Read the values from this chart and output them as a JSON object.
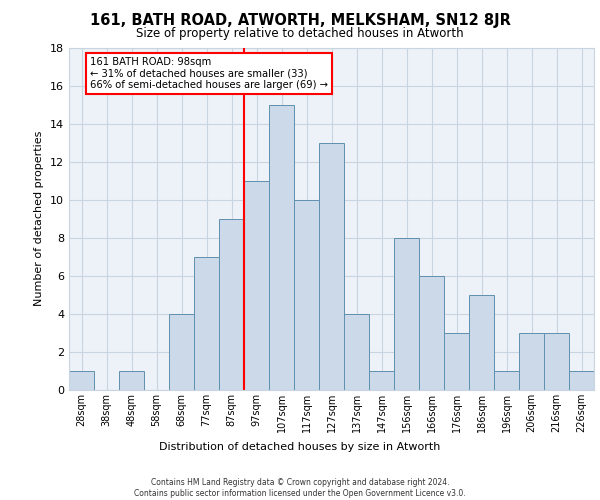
{
  "title": "161, BATH ROAD, ATWORTH, MELKSHAM, SN12 8JR",
  "subtitle": "Size of property relative to detached houses in Atworth",
  "xlabel": "Distribution of detached houses by size in Atworth",
  "ylabel": "Number of detached properties",
  "bar_color": "#ccd9e8",
  "bar_edge_color": "#6090b0",
  "grid_color": "#c8d4e0",
  "background_color": "#edf2f8",
  "categories": [
    "28sqm",
    "38sqm",
    "48sqm",
    "58sqm",
    "68sqm",
    "77sqm",
    "87sqm",
    "97sqm",
    "107sqm",
    "117sqm",
    "127sqm",
    "137sqm",
    "147sqm",
    "156sqm",
    "166sqm",
    "176sqm",
    "186sqm",
    "196sqm",
    "206sqm",
    "216sqm",
    "226sqm"
  ],
  "values": [
    1,
    0,
    1,
    0,
    4,
    7,
    9,
    11,
    15,
    10,
    13,
    4,
    1,
    8,
    6,
    3,
    5,
    1,
    3,
    3,
    1
  ],
  "ref_line_index": 7,
  "annotation_title": "161 BATH ROAD: 98sqm",
  "annotation_line2": "← 31% of detached houses are smaller (33)",
  "annotation_line3": "66% of semi-detached houses are larger (69) →",
  "ylim": [
    0,
    18
  ],
  "yticks": [
    0,
    2,
    4,
    6,
    8,
    10,
    12,
    14,
    16,
    18
  ],
  "footer_line1": "Contains HM Land Registry data © Crown copyright and database right 2024.",
  "footer_line2": "Contains public sector information licensed under the Open Government Licence v3.0."
}
